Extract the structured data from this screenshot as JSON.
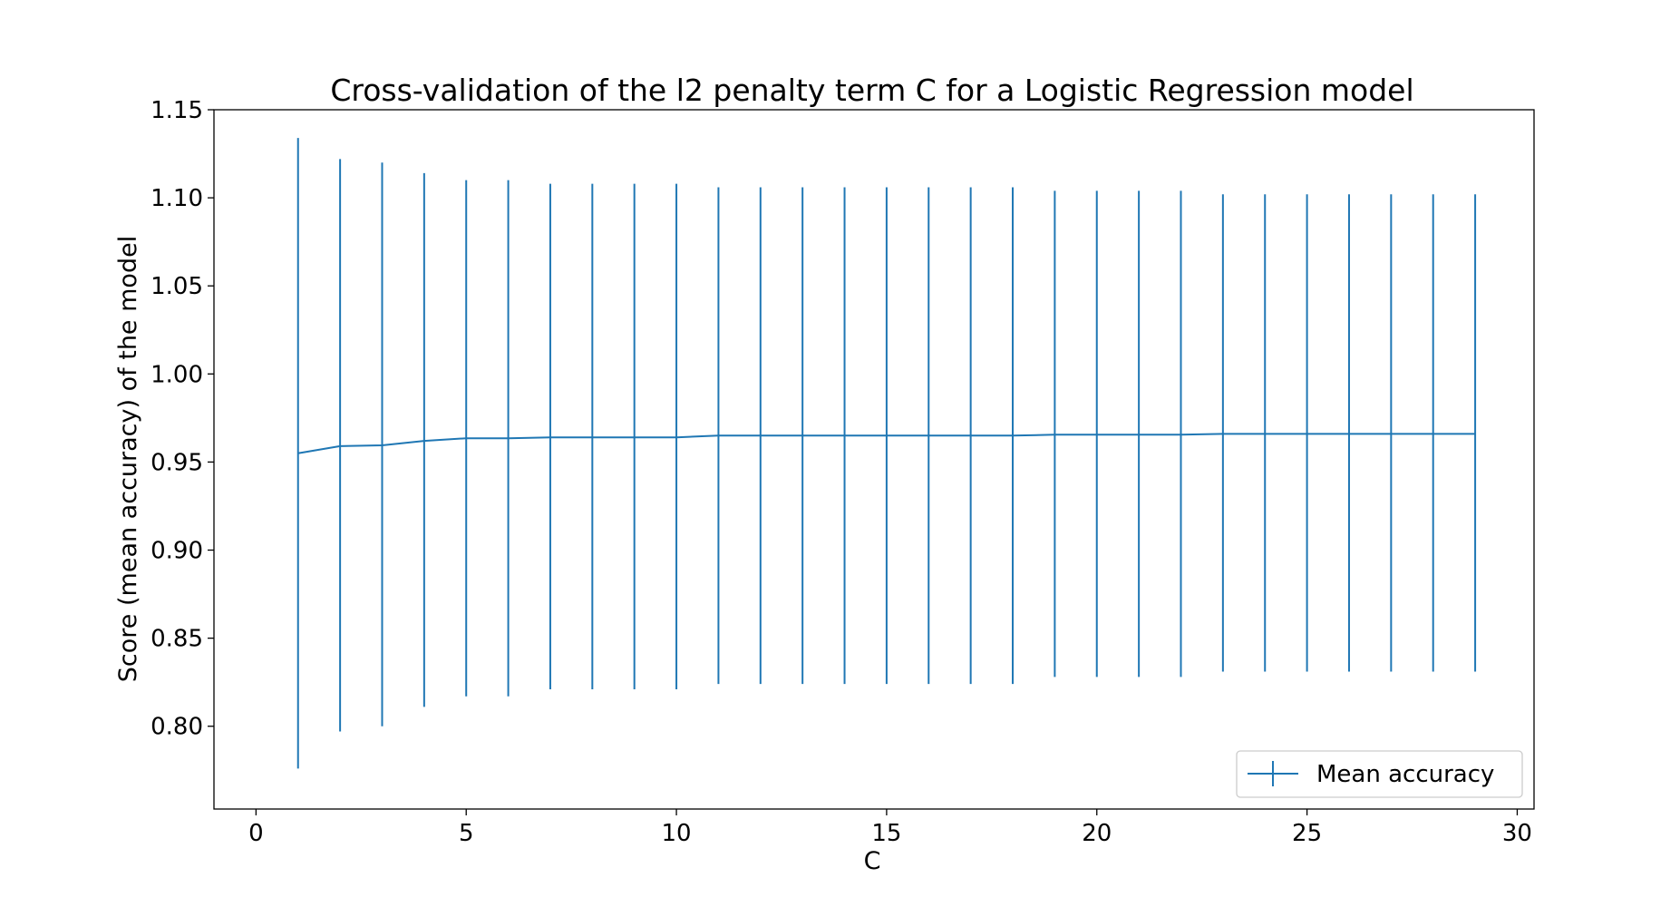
{
  "chart_data": {
    "type": "line",
    "title": "Cross-validation of the l2 penalty term C for a Logistic Regression model",
    "xlabel": "C",
    "ylabel": "Score (mean accuracy) of the model",
    "xlim": [
      -1,
      30.4
    ],
    "ylim": [
      0.753,
      1.15
    ],
    "xticks": [
      0,
      5,
      10,
      15,
      20,
      25,
      30
    ],
    "xtick_labels": [
      "0",
      "5",
      "10",
      "15",
      "20",
      "25",
      "30"
    ],
    "yticks": [
      0.8,
      0.85,
      0.9,
      0.95,
      1.0,
      1.05,
      1.1,
      1.15
    ],
    "ytick_labels": [
      "0.80",
      "0.85",
      "0.90",
      "0.95",
      "1.00",
      "1.05",
      "1.10",
      "1.15"
    ],
    "grid": false,
    "legend_position": "lower-right",
    "series": [
      {
        "name": "Mean accuracy",
        "color": "#1f77b4",
        "x": [
          1,
          2,
          3,
          4,
          5,
          6,
          7,
          8,
          9,
          10,
          11,
          12,
          13,
          14,
          15,
          16,
          17,
          18,
          19,
          20,
          21,
          22,
          23,
          24,
          25,
          26,
          27,
          28,
          29
        ],
        "y": [
          0.955,
          0.959,
          0.9595,
          0.962,
          0.9635,
          0.9635,
          0.964,
          0.964,
          0.964,
          0.964,
          0.965,
          0.965,
          0.965,
          0.965,
          0.965,
          0.965,
          0.965,
          0.965,
          0.9655,
          0.9655,
          0.9655,
          0.9655,
          0.966,
          0.966,
          0.966,
          0.966,
          0.966,
          0.966,
          0.966
        ],
        "err_low": [
          0.776,
          0.797,
          0.8,
          0.811,
          0.817,
          0.817,
          0.821,
          0.821,
          0.821,
          0.821,
          0.824,
          0.824,
          0.824,
          0.824,
          0.824,
          0.824,
          0.824,
          0.824,
          0.828,
          0.828,
          0.828,
          0.828,
          0.831,
          0.831,
          0.831,
          0.831,
          0.831,
          0.831,
          0.831
        ],
        "err_high": [
          1.134,
          1.122,
          1.12,
          1.114,
          1.11,
          1.11,
          1.108,
          1.108,
          1.108,
          1.108,
          1.106,
          1.106,
          1.106,
          1.106,
          1.106,
          1.106,
          1.106,
          1.106,
          1.104,
          1.104,
          1.104,
          1.104,
          1.102,
          1.102,
          1.102,
          1.102,
          1.102,
          1.102,
          1.102
        ]
      }
    ]
  }
}
